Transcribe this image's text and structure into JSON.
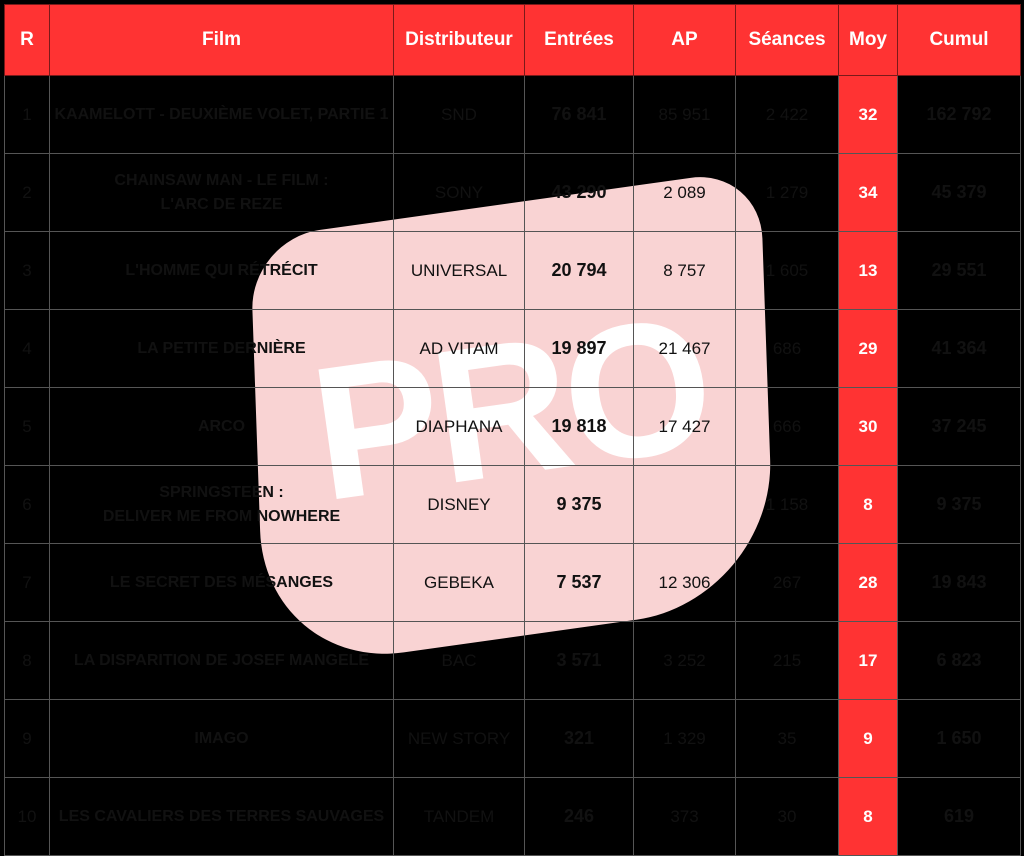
{
  "watermark": {
    "text": "PRO",
    "color": "#f9d3d3"
  },
  "colors": {
    "header": "#ff3333",
    "moy_column": "#ff3333"
  },
  "headers": [
    "R",
    "Film",
    "Distributeur",
    "Entrées",
    "AP",
    "Séances",
    "Moy",
    "Cumul"
  ],
  "rows": [
    {
      "r": "1",
      "film": [
        "KAAMELOTT - DEUXIÈME VOLET, PARTIE 1"
      ],
      "distributeur": "SND",
      "entrees": "76 841",
      "ap": "85 951",
      "seances": "2 422",
      "moy": "32",
      "cumul": "162 792"
    },
    {
      "r": "2",
      "film": [
        "CHAINSAW MAN - LE FILM :",
        "L'ARC DE REZE"
      ],
      "distributeur": "SONY",
      "entrees": "43 290",
      "ap": "2 089",
      "seances": "1 279",
      "moy": "34",
      "cumul": "45 379"
    },
    {
      "r": "3",
      "film": [
        "L'HOMME QUI RÉTRÉCIT"
      ],
      "distributeur": "UNIVERSAL",
      "entrees": "20 794",
      "ap": "8 757",
      "seances": "1 605",
      "moy": "13",
      "cumul": "29 551"
    },
    {
      "r": "4",
      "film": [
        "LA PETITE DERNIÈRE"
      ],
      "distributeur": "AD VITAM",
      "entrees": "19 897",
      "ap": "21 467",
      "seances": "686",
      "moy": "29",
      "cumul": "41 364"
    },
    {
      "r": "5",
      "film": [
        "ARCO"
      ],
      "distributeur": "DIAPHANA",
      "entrees": "19 818",
      "ap": "17 427",
      "seances": "666",
      "moy": "30",
      "cumul": "37 245"
    },
    {
      "r": "6",
      "film": [
        "SPRINGSTEEN :",
        "DELIVER ME FROM NOWHERE"
      ],
      "distributeur": "DISNEY",
      "entrees": "9 375",
      "ap": "",
      "seances": "1 158",
      "moy": "8",
      "cumul": "9 375"
    },
    {
      "r": "7",
      "film": [
        "LE SECRET DES MÉSANGES"
      ],
      "distributeur": "GEBEKA",
      "entrees": "7 537",
      "ap": "12 306",
      "seances": "267",
      "moy": "28",
      "cumul": "19 843"
    },
    {
      "r": "8",
      "film": [
        "LA DISPARITION DE JOSEF MANGELE"
      ],
      "distributeur": "BAC",
      "entrees": "3 571",
      "ap": "3 252",
      "seances": "215",
      "moy": "17",
      "cumul": "6 823"
    },
    {
      "r": "9",
      "film": [
        "IMAGO"
      ],
      "distributeur": "NEW STORY",
      "entrees": "321",
      "ap": "1 329",
      "seances": "35",
      "moy": "9",
      "cumul": "1 650"
    },
    {
      "r": "10",
      "film": [
        "LES CAVALIERS DES TERRES SAUVAGES"
      ],
      "distributeur": "TANDEM",
      "entrees": "246",
      "ap": "373",
      "seances": "30",
      "moy": "8",
      "cumul": "619"
    }
  ]
}
